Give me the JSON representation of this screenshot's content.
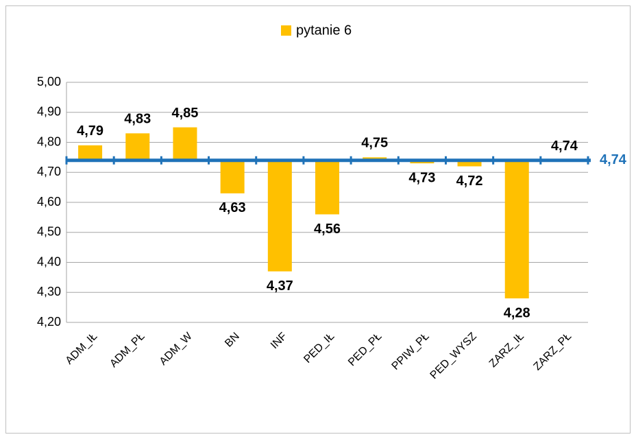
{
  "chart_data": {
    "type": "bar",
    "series": [
      {
        "name": "pytanie 6",
        "color": "#ffc000",
        "values": [
          4.79,
          4.83,
          4.85,
          4.63,
          4.37,
          4.56,
          4.75,
          4.73,
          4.72,
          4.28,
          4.74
        ],
        "value_labels": [
          "4,79",
          "4,83",
          "4,85",
          "4,63",
          "4,37",
          "4,56",
          "4,75",
          "4,73",
          "4,72",
          "4,28",
          "4,74"
        ]
      }
    ],
    "categories": [
      "ADM_IŁ",
      "ADM_PŁ",
      "ADM_W",
      "BN",
      "INF",
      "PED_IŁ",
      "PED_PŁ",
      "PPIW_PŁ",
      "PED_WYSZ",
      "ZARZ_IŁ",
      "ZARZ_PŁ"
    ],
    "ylim": [
      4.2,
      5.0
    ],
    "yticks": [
      {
        "value": 4.2,
        "label": "4,20"
      },
      {
        "value": 4.3,
        "label": "4,30"
      },
      {
        "value": 4.4,
        "label": "4,40"
      },
      {
        "value": 4.5,
        "label": "4,50"
      },
      {
        "value": 4.6,
        "label": "4,60"
      },
      {
        "value": 4.7,
        "label": "4,70"
      },
      {
        "value": 4.8,
        "label": "4,80"
      },
      {
        "value": 4.9,
        "label": "4,90"
      },
      {
        "value": 5.0,
        "label": "5,00"
      }
    ],
    "baseline": {
      "value": 4.74,
      "label": "4,74",
      "color": "#1f72b8"
    },
    "grid": true,
    "legend": "top"
  }
}
